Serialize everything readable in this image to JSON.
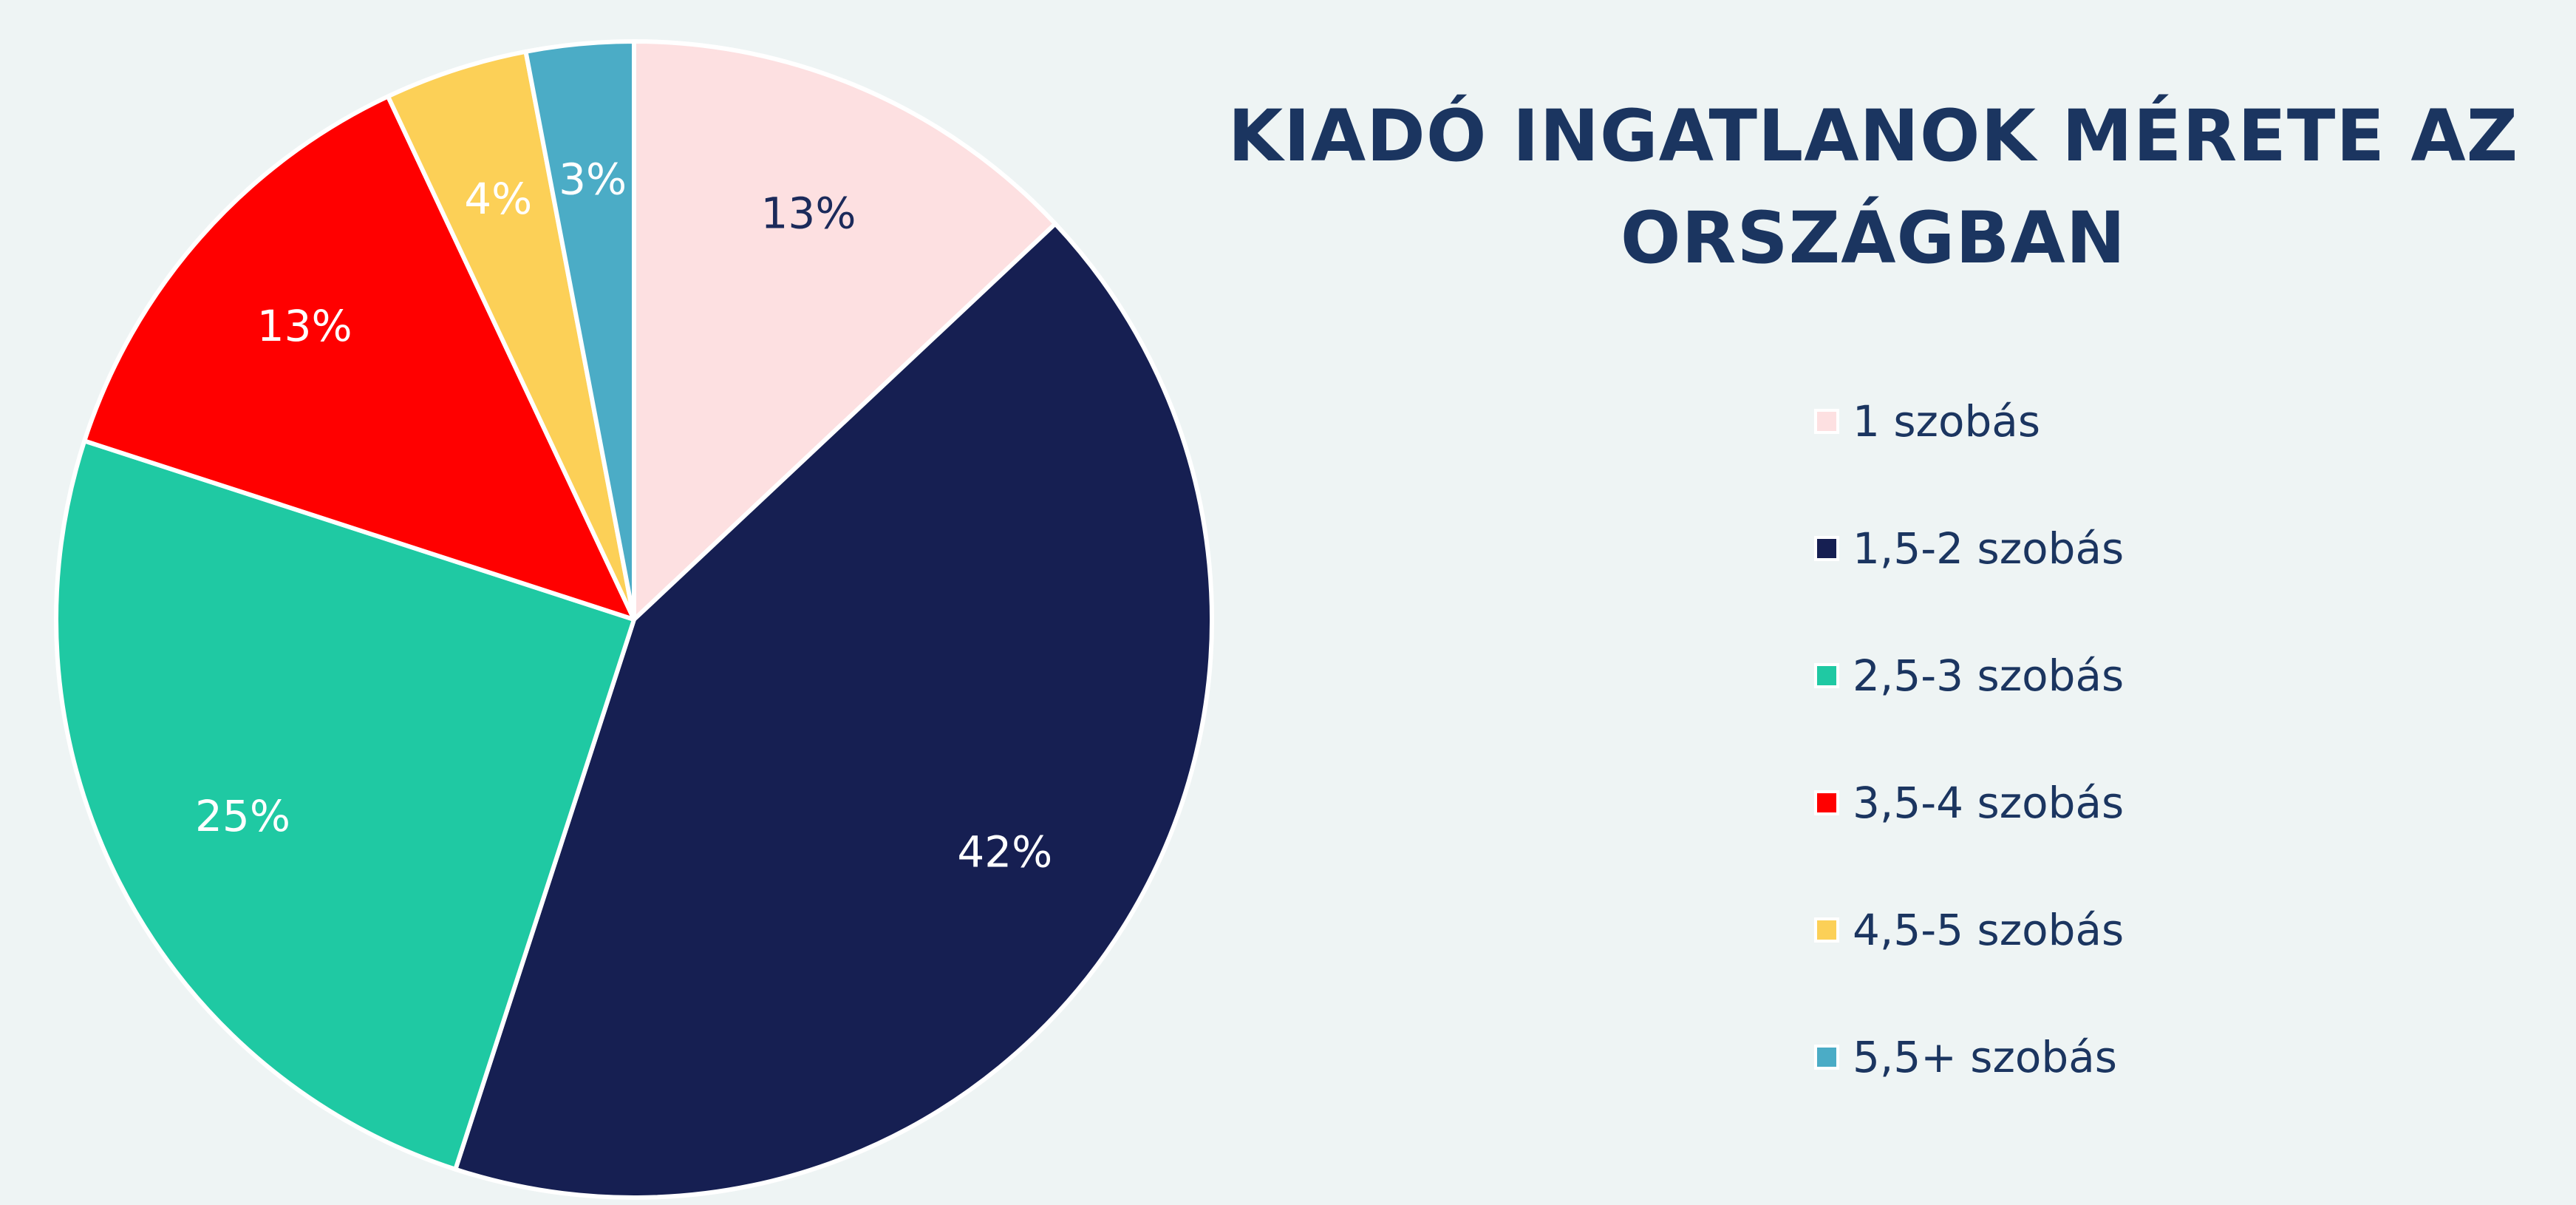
{
  "colors": {
    "background": "#eef4f4",
    "title": "#1b3560",
    "legend_text": "#1b3560",
    "slice_border": "#ffffff"
  },
  "chart_data": {
    "type": "pie",
    "title": "KIADÓ INGATLANOK MÉRETE AZ ORSZÁGBAN",
    "title_lines": [
      "KIADÓ INGATLANOK MÉRETE AZ",
      "ORSZÁGBAN"
    ],
    "legend_position": "right",
    "start_angle_deg": 0,
    "direction": "clockwise",
    "slices": [
      {
        "label": "1 szobás",
        "value": 13,
        "display": "13%",
        "color": "#fde0e1",
        "label_color": "#1b2a5a"
      },
      {
        "label": "1,5-2 szobás",
        "value": 42,
        "display": "42%",
        "color": "#161f52",
        "label_color": "#ffffff"
      },
      {
        "label": "2,5-3 szobás",
        "value": 25,
        "display": "25%",
        "color": "#1fc9a3",
        "label_color": "#ffffff"
      },
      {
        "label": "3,5-4 szobás",
        "value": 13,
        "display": "13%",
        "color": "#ff0000",
        "label_color": "#ffffff"
      },
      {
        "label": "4,5-5 szobás",
        "value": 4,
        "display": "4%",
        "color": "#fcd057",
        "label_color": "#ffffff"
      },
      {
        "label": "5,5+ szobás",
        "value": 3,
        "display": "3%",
        "color": "#4bacc6",
        "label_color": "#ffffff"
      }
    ]
  }
}
